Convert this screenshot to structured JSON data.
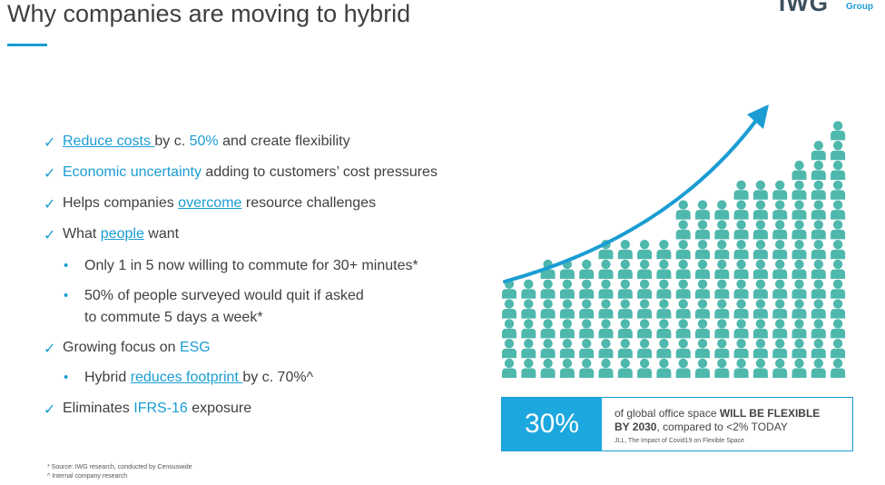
{
  "title": "Why companies are moving to hybrid",
  "logo": {
    "mark": "IWG",
    "group": "Group"
  },
  "bullets": [
    {
      "type": "check",
      "parts": [
        {
          "t": "Reduce costs ",
          "s": "link"
        },
        {
          "t": "by c. ",
          "s": ""
        },
        {
          "t": "50%",
          "s": "hl"
        },
        {
          "t": " and create flexibility",
          "s": ""
        }
      ]
    },
    {
      "type": "check",
      "parts": [
        {
          "t": "Economic uncertainty",
          "s": "hl"
        },
        {
          "t": " adding to customers’ cost pressures",
          "s": ""
        }
      ]
    },
    {
      "type": "check",
      "parts": [
        {
          "t": "Helps companies ",
          "s": ""
        },
        {
          "t": "overcome",
          "s": "link"
        },
        {
          "t": " resource challenges",
          "s": ""
        }
      ]
    },
    {
      "type": "check",
      "parts": [
        {
          "t": "What ",
          "s": ""
        },
        {
          "t": "people",
          "s": "link"
        },
        {
          "t": " want",
          "s": ""
        }
      ]
    },
    {
      "type": "dot",
      "parts": [
        {
          "t": "Only 1 in 5 now willing to commute for 30+ minutes*",
          "s": ""
        }
      ]
    },
    {
      "type": "dot",
      "parts": [
        {
          "t": "50% of people surveyed would quit if asked",
          "s": ""
        }
      ]
    },
    {
      "type": "cont",
      "parts": [
        {
          "t": "to commute 5 days a week*",
          "s": ""
        }
      ]
    },
    {
      "type": "check",
      "parts": [
        {
          "t": "Growing focus on ",
          "s": ""
        },
        {
          "t": "ESG",
          "s": "hl"
        }
      ]
    },
    {
      "type": "dot",
      "parts": [
        {
          "t": "Hybrid ",
          "s": ""
        },
        {
          "t": "reduces footprint ",
          "s": "link"
        },
        {
          "t": "by c. 70%^",
          "s": ""
        }
      ]
    },
    {
      "type": "check",
      "parts": [
        {
          "t": "Eliminates ",
          "s": ""
        },
        {
          "t": "IFRS-16",
          "s": "hl"
        },
        {
          "t": " exposure",
          "s": ""
        }
      ]
    }
  ],
  "footnotes": [
    "* Source: IWG research, conducted by Censuswide",
    "^ Internal company research"
  ],
  "stat": {
    "value": "30%",
    "line1_pre": "of global office space ",
    "line1_bold": "WILL BE FLEXIBLE",
    "line2_bold": "BY 2030",
    "line2_post": ", compared to <2% TODAY",
    "source": "JLL, The Impact of Covid19 on Flexible Space"
  },
  "colors": {
    "accent": "#1b9dd3",
    "people": "#4fb8ad",
    "box": "#1ca7de"
  },
  "people_columns": [
    5,
    5,
    6,
    6,
    6,
    7,
    7,
    7,
    7,
    9,
    9,
    9,
    10,
    10,
    10,
    11,
    12,
    13
  ]
}
